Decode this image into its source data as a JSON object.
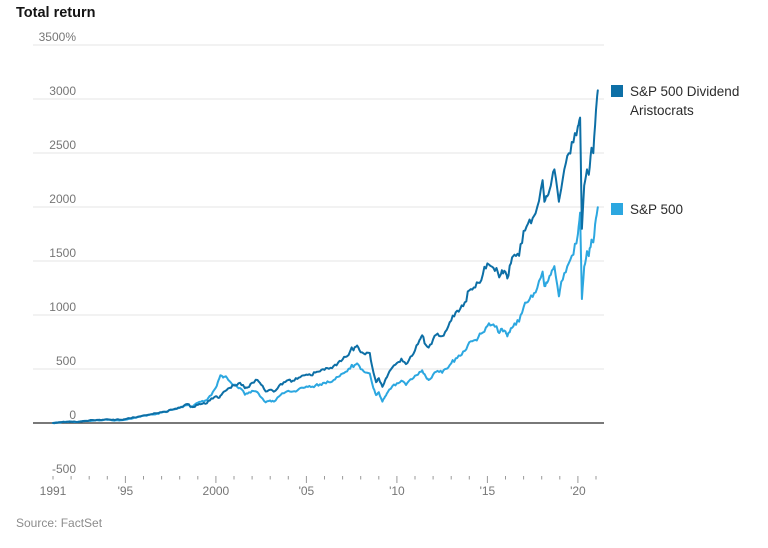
{
  "title": "Total return",
  "source": "Source: FactSet",
  "colors": {
    "aristocrats": "#0d6fa6",
    "sp500": "#2ca7e0",
    "grid": "#e4e4e4",
    "zero_line": "#4d4d4d",
    "tick": "#9a9a9a",
    "axis_label": "#767676",
    "title": "#141414",
    "source": "#8c8c8c"
  },
  "legend": [
    {
      "label": "S&P 500 Dividend Aristocrats",
      "color": "#0d6fa6"
    },
    {
      "label": "S&P 500",
      "color": "#2ca7e0"
    }
  ],
  "chart_data": {
    "type": "line",
    "title": "Total return",
    "unit": "%",
    "grid": "horizontal",
    "legend_position": "right",
    "y_axis": {
      "ticks": [
        3500,
        3000,
        2500,
        2000,
        1500,
        1000,
        500,
        0,
        -500
      ],
      "labels": [
        "3500%",
        "3000",
        "2500",
        "2000",
        "1500",
        "1000",
        "500",
        "0",
        "-500"
      ],
      "range": [
        -500,
        3500
      ]
    },
    "x_axis": {
      "range": [
        1991,
        2021.3
      ],
      "minor_tick_every_years": 1,
      "ticks": [
        {
          "year": 1991,
          "label": "1991"
        },
        {
          "year": 1995,
          "label": "'95"
        },
        {
          "year": 2000,
          "label": "2000"
        },
        {
          "year": 2005,
          "label": "'05"
        },
        {
          "year": 2010,
          "label": "'10"
        },
        {
          "year": 2015,
          "label": "'15"
        },
        {
          "year": 2020,
          "label": "'20"
        }
      ]
    },
    "series": [
      {
        "name": "S&P 500 Dividend Aristocrats",
        "color": "#0d6fa6",
        "points": [
          [
            1991.0,
            0
          ],
          [
            1991.25,
            4
          ],
          [
            1991.5,
            8
          ],
          [
            1991.75,
            10
          ],
          [
            1992.0,
            13
          ],
          [
            1992.25,
            11
          ],
          [
            1992.5,
            15
          ],
          [
            1992.75,
            19
          ],
          [
            1993.0,
            23
          ],
          [
            1993.25,
            27
          ],
          [
            1993.5,
            29
          ],
          [
            1993.75,
            31
          ],
          [
            1994.0,
            34
          ],
          [
            1994.25,
            29
          ],
          [
            1994.5,
            32
          ],
          [
            1994.75,
            31
          ],
          [
            1995.0,
            36
          ],
          [
            1995.25,
            44
          ],
          [
            1995.5,
            52
          ],
          [
            1995.75,
            60
          ],
          [
            1996.0,
            70
          ],
          [
            1996.25,
            76
          ],
          [
            1996.5,
            82
          ],
          [
            1996.75,
            91
          ],
          [
            1997.0,
            100
          ],
          [
            1997.25,
            105
          ],
          [
            1997.5,
            124
          ],
          [
            1997.75,
            133
          ],
          [
            1998.0,
            143
          ],
          [
            1998.25,
            163
          ],
          [
            1998.5,
            174
          ],
          [
            1998.6,
            152
          ],
          [
            1998.75,
            148
          ],
          [
            1999.0,
            168
          ],
          [
            1999.25,
            178
          ],
          [
            1999.5,
            182
          ],
          [
            1999.75,
            228
          ],
          [
            2000.0,
            248
          ],
          [
            2000.15,
            232
          ],
          [
            2000.3,
            258
          ],
          [
            2000.5,
            295
          ],
          [
            2000.75,
            325
          ],
          [
            2001.0,
            348
          ],
          [
            2001.25,
            368
          ],
          [
            2001.5,
            352
          ],
          [
            2001.6,
            322
          ],
          [
            2001.75,
            330
          ],
          [
            2002.0,
            372
          ],
          [
            2002.3,
            398
          ],
          [
            2002.5,
            355
          ],
          [
            2002.75,
            292
          ],
          [
            2003.0,
            308
          ],
          [
            2003.2,
            290
          ],
          [
            2003.5,
            348
          ],
          [
            2003.75,
            378
          ],
          [
            2004.0,
            398
          ],
          [
            2004.25,
            392
          ],
          [
            2004.5,
            408
          ],
          [
            2004.75,
            438
          ],
          [
            2005.0,
            448
          ],
          [
            2005.25,
            442
          ],
          [
            2005.5,
            468
          ],
          [
            2005.75,
            478
          ],
          [
            2006.0,
            492
          ],
          [
            2006.25,
            502
          ],
          [
            2006.5,
            528
          ],
          [
            2006.75,
            558
          ],
          [
            2007.0,
            588
          ],
          [
            2007.25,
            618
          ],
          [
            2007.5,
            700
          ],
          [
            2007.6,
            672
          ],
          [
            2007.8,
            718
          ],
          [
            2008.0,
            655
          ],
          [
            2008.25,
            635
          ],
          [
            2008.5,
            648
          ],
          [
            2008.7,
            470
          ],
          [
            2008.85,
            378
          ],
          [
            2009.0,
            415
          ],
          [
            2009.2,
            335
          ],
          [
            2009.35,
            395
          ],
          [
            2009.5,
            445
          ],
          [
            2009.75,
            515
          ],
          [
            2010.0,
            555
          ],
          [
            2010.25,
            595
          ],
          [
            2010.5,
            545
          ],
          [
            2010.75,
            615
          ],
          [
            2011.0,
            672
          ],
          [
            2011.25,
            768
          ],
          [
            2011.4,
            812
          ],
          [
            2011.6,
            722
          ],
          [
            2011.75,
            698
          ],
          [
            2012.0,
            775
          ],
          [
            2012.25,
            828
          ],
          [
            2012.5,
            805
          ],
          [
            2012.75,
            862
          ],
          [
            2013.0,
            948
          ],
          [
            2013.25,
            1025
          ],
          [
            2013.5,
            1058
          ],
          [
            2013.75,
            1118
          ],
          [
            2014.0,
            1228
          ],
          [
            2014.25,
            1255
          ],
          [
            2014.5,
            1298
          ],
          [
            2014.75,
            1378
          ],
          [
            2015.0,
            1478
          ],
          [
            2015.25,
            1448
          ],
          [
            2015.5,
            1435
          ],
          [
            2015.65,
            1348
          ],
          [
            2015.8,
            1415
          ],
          [
            2016.0,
            1398
          ],
          [
            2016.1,
            1338
          ],
          [
            2016.3,
            1478
          ],
          [
            2016.5,
            1558
          ],
          [
            2016.75,
            1548
          ],
          [
            2017.0,
            1778
          ],
          [
            2017.25,
            1848
          ],
          [
            2017.5,
            1898
          ],
          [
            2017.75,
            1998
          ],
          [
            2018.05,
            2248
          ],
          [
            2018.15,
            2048
          ],
          [
            2018.3,
            2098
          ],
          [
            2018.5,
            2198
          ],
          [
            2018.7,
            2348
          ],
          [
            2018.95,
            2048
          ],
          [
            2019.0,
            2098
          ],
          [
            2019.25,
            2348
          ],
          [
            2019.5,
            2498
          ],
          [
            2019.75,
            2598
          ],
          [
            2020.0,
            2748
          ],
          [
            2020.12,
            2828
          ],
          [
            2020.22,
            1798
          ],
          [
            2020.35,
            2198
          ],
          [
            2020.5,
            2348
          ],
          [
            2020.6,
            2298
          ],
          [
            2020.75,
            2548
          ],
          [
            2020.85,
            2498
          ],
          [
            2021.0,
            2898
          ],
          [
            2021.1,
            3080
          ]
        ]
      },
      {
        "name": "S&P 500",
        "color": "#2ca7e0",
        "points": [
          [
            1991.0,
            0
          ],
          [
            1991.25,
            5
          ],
          [
            1991.5,
            9
          ],
          [
            1991.75,
            11
          ],
          [
            1992.0,
            12
          ],
          [
            1992.25,
            10
          ],
          [
            1992.5,
            13
          ],
          [
            1992.75,
            17
          ],
          [
            1993.0,
            20
          ],
          [
            1993.25,
            22
          ],
          [
            1993.5,
            24
          ],
          [
            1993.75,
            26
          ],
          [
            1994.0,
            29
          ],
          [
            1994.25,
            25
          ],
          [
            1994.5,
            27
          ],
          [
            1994.75,
            26
          ],
          [
            1995.0,
            31
          ],
          [
            1995.25,
            40
          ],
          [
            1995.5,
            49
          ],
          [
            1995.75,
            57
          ],
          [
            1996.0,
            67
          ],
          [
            1996.25,
            73
          ],
          [
            1996.5,
            79
          ],
          [
            1996.75,
            87
          ],
          [
            1997.0,
            97
          ],
          [
            1997.25,
            101
          ],
          [
            1997.5,
            121
          ],
          [
            1997.75,
            128
          ],
          [
            1998.0,
            140
          ],
          [
            1998.25,
            158
          ],
          [
            1998.5,
            170
          ],
          [
            1998.6,
            146
          ],
          [
            1998.75,
            158
          ],
          [
            1999.0,
            188
          ],
          [
            1999.25,
            205
          ],
          [
            1999.5,
            212
          ],
          [
            1999.75,
            258
          ],
          [
            2000.0,
            328
          ],
          [
            2000.15,
            398
          ],
          [
            2000.25,
            442
          ],
          [
            2000.4,
            420
          ],
          [
            2000.55,
            432
          ],
          [
            2000.75,
            388
          ],
          [
            2001.0,
            355
          ],
          [
            2001.25,
            322
          ],
          [
            2001.5,
            298
          ],
          [
            2001.6,
            262
          ],
          [
            2001.75,
            272
          ],
          [
            2002.0,
            298
          ],
          [
            2002.3,
            285
          ],
          [
            2002.5,
            238
          ],
          [
            2002.75,
            192
          ],
          [
            2003.0,
            208
          ],
          [
            2003.2,
            198
          ],
          [
            2003.5,
            248
          ],
          [
            2003.75,
            275
          ],
          [
            2004.0,
            298
          ],
          [
            2004.25,
            292
          ],
          [
            2004.5,
            302
          ],
          [
            2004.75,
            328
          ],
          [
            2005.0,
            338
          ],
          [
            2005.25,
            332
          ],
          [
            2005.5,
            348
          ],
          [
            2005.75,
            358
          ],
          [
            2006.0,
            372
          ],
          [
            2006.25,
            378
          ],
          [
            2006.5,
            398
          ],
          [
            2006.75,
            428
          ],
          [
            2007.0,
            458
          ],
          [
            2007.25,
            478
          ],
          [
            2007.5,
            538
          ],
          [
            2007.6,
            518
          ],
          [
            2007.8,
            552
          ],
          [
            2008.0,
            498
          ],
          [
            2008.25,
            468
          ],
          [
            2008.5,
            458
          ],
          [
            2008.7,
            322
          ],
          [
            2008.85,
            258
          ],
          [
            2009.0,
            285
          ],
          [
            2009.2,
            198
          ],
          [
            2009.35,
            245
          ],
          [
            2009.5,
            288
          ],
          [
            2009.75,
            342
          ],
          [
            2010.0,
            368
          ],
          [
            2010.25,
            392
          ],
          [
            2010.5,
            352
          ],
          [
            2010.75,
            405
          ],
          [
            2011.0,
            438
          ],
          [
            2011.25,
            472
          ],
          [
            2011.4,
            488
          ],
          [
            2011.6,
            428
          ],
          [
            2011.75,
            398
          ],
          [
            2012.0,
            448
          ],
          [
            2012.25,
            482
          ],
          [
            2012.5,
            465
          ],
          [
            2012.75,
            502
          ],
          [
            2013.0,
            552
          ],
          [
            2013.25,
            598
          ],
          [
            2013.5,
            622
          ],
          [
            2013.75,
            668
          ],
          [
            2014.0,
            748
          ],
          [
            2014.25,
            765
          ],
          [
            2014.5,
            795
          ],
          [
            2014.75,
            838
          ],
          [
            2015.0,
            898
          ],
          [
            2015.25,
            908
          ],
          [
            2015.5,
            895
          ],
          [
            2015.65,
            832
          ],
          [
            2015.8,
            872
          ],
          [
            2016.0,
            848
          ],
          [
            2016.1,
            802
          ],
          [
            2016.3,
            878
          ],
          [
            2016.5,
            922
          ],
          [
            2016.75,
            938
          ],
          [
            2017.0,
            1072
          ],
          [
            2017.25,
            1122
          ],
          [
            2017.5,
            1168
          ],
          [
            2017.75,
            1248
          ],
          [
            2018.05,
            1402
          ],
          [
            2018.15,
            1268
          ],
          [
            2018.3,
            1298
          ],
          [
            2018.5,
            1372
          ],
          [
            2018.7,
            1452
          ],
          [
            2018.95,
            1172
          ],
          [
            2019.0,
            1222
          ],
          [
            2019.25,
            1388
          ],
          [
            2019.5,
            1482
          ],
          [
            2019.75,
            1558
          ],
          [
            2020.0,
            1748
          ],
          [
            2020.12,
            1948
          ],
          [
            2020.22,
            1148
          ],
          [
            2020.35,
            1448
          ],
          [
            2020.5,
            1592
          ],
          [
            2020.6,
            1545
          ],
          [
            2020.75,
            1698
          ],
          [
            2020.85,
            1672
          ],
          [
            2021.0,
            1898
          ],
          [
            2021.1,
            1998
          ]
        ]
      }
    ]
  }
}
